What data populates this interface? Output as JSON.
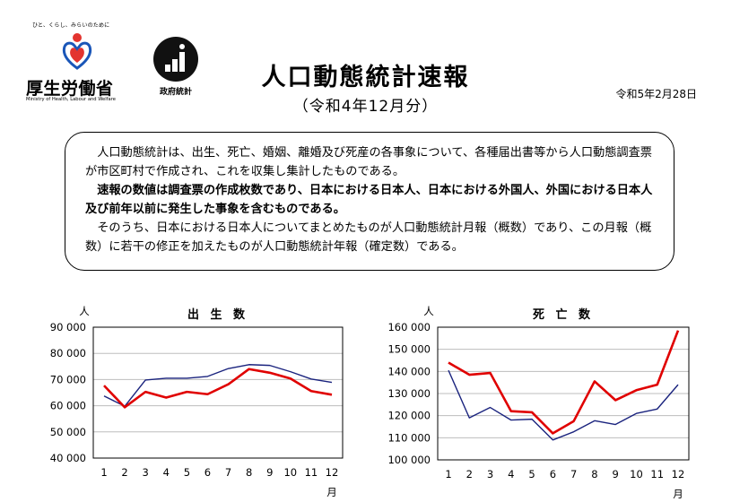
{
  "mhlw_logo": {
    "tagline": "ひと、くらし、みらいのために",
    "name": "厚生労働省",
    "name_en": "Ministry of Health, Labour and Welfare"
  },
  "stats_logo": {
    "name": "政府統計"
  },
  "title": "人口動態統計速報",
  "subtitle": "（令和4年12月分）",
  "release_date": "令和5年2月28日",
  "description": [
    "人口動態統計は、出生、死亡、婚姻、離婚及び死産の各事象について、各種届出書等から人口動態調査票が市区町村で作成され、これを収集し集計したものである。",
    "速報の数値は調査票の作成枚数であり、日本における日本人、日本における外国人、外国における日本人及び前年以前に発生した事象を含むものである。",
    "そのうち、日本における日本人についてまとめたものが人口動態統計月報（概数）であり、この月報（概数）に若干の修正を加えたものが人口動態統計年報（確定数）である。"
  ],
  "chart_data": [
    {
      "type": "line",
      "title": "出 生 数",
      "ylabel": "人",
      "xlabel": "月",
      "categories": [
        "1",
        "2",
        "3",
        "4",
        "5",
        "6",
        "7",
        "8",
        "9",
        "10",
        "11",
        "12"
      ],
      "ylim": [
        40000,
        90000
      ],
      "yticks": [
        "40 000",
        "50 000",
        "60 000",
        "70 000",
        "80 000",
        "90 000"
      ],
      "ytick_values": [
        40000,
        50000,
        60000,
        70000,
        80000,
        90000
      ],
      "series": [
        {
          "color": "#e00000",
          "values": [
            67700,
            59400,
            65300,
            63100,
            65300,
            64400,
            68200,
            74000,
            72600,
            70400,
            65600,
            64200
          ]
        },
        {
          "color": "#1a237e",
          "values": [
            63700,
            59800,
            69800,
            70500,
            70500,
            71200,
            74200,
            75700,
            75400,
            73000,
            70200,
            68900
          ]
        }
      ]
    },
    {
      "type": "line",
      "title": "死 亡 数",
      "ylabel": "人",
      "xlabel": "月",
      "categories": [
        "1",
        "2",
        "3",
        "4",
        "5",
        "6",
        "7",
        "8",
        "9",
        "10",
        "11",
        "12"
      ],
      "ylim": [
        100000,
        160000
      ],
      "yticks": [
        "100 000",
        "110 000",
        "120 000",
        "130 000",
        "140 000",
        "150 000",
        "160 000"
      ],
      "ytick_values": [
        100000,
        110000,
        120000,
        130000,
        140000,
        150000,
        160000
      ],
      "series": [
        {
          "color": "#e00000",
          "values": [
            144000,
            138500,
            139300,
            122000,
            121500,
            112000,
            117500,
            135500,
            127000,
            131500,
            134000,
            158500
          ]
        },
        {
          "color": "#1a237e",
          "values": [
            140500,
            119000,
            123700,
            118000,
            118400,
            109000,
            112700,
            117700,
            116000,
            121000,
            123000,
            134000
          ]
        }
      ]
    }
  ]
}
